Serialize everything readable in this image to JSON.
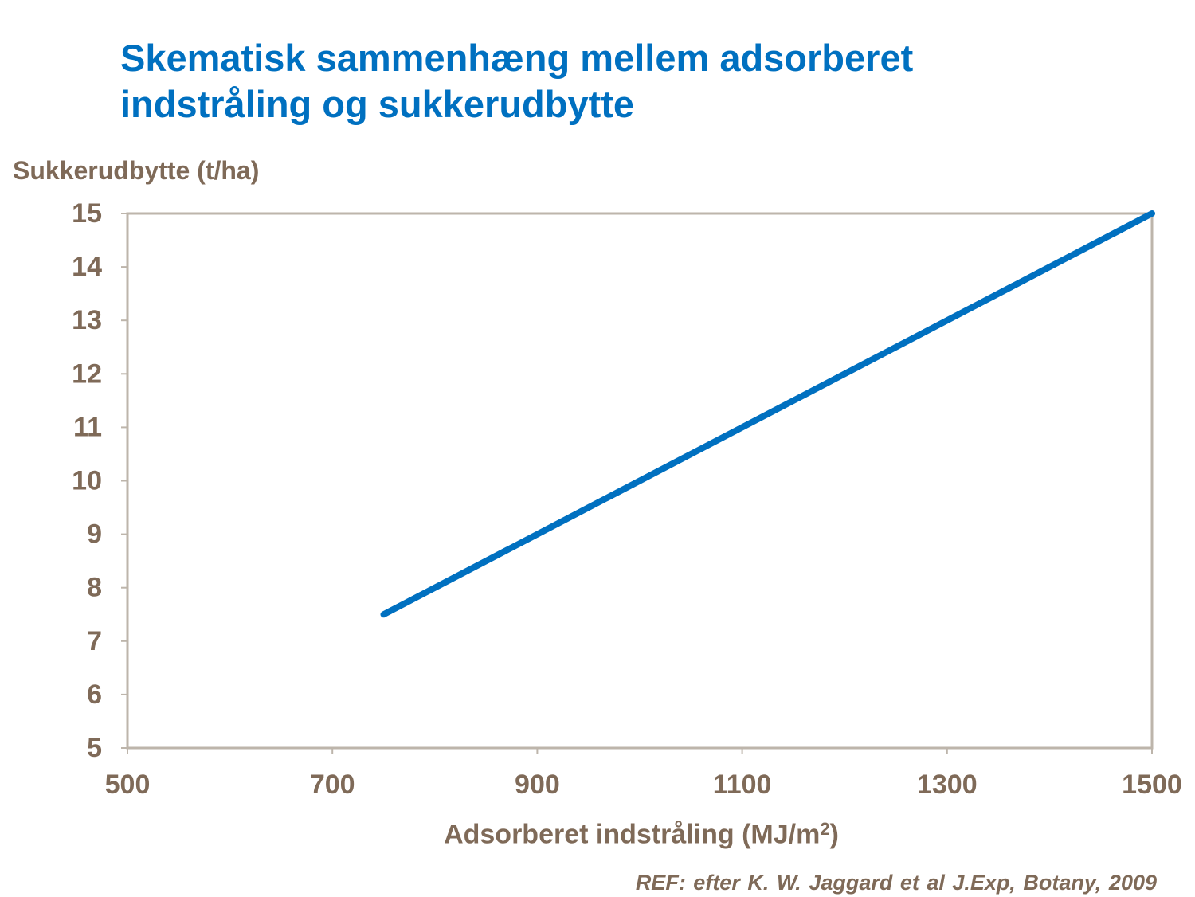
{
  "chart_data": {
    "type": "line",
    "title": "Skematisk sammenhæng mellem adsorberet indstråling og sukkerudbytte",
    "title_lines": [
      "Skematisk sammenhæng mellem adsorberet",
      "indstråling og sukkerudbytte"
    ],
    "ylabel": "Sukkerudbytte (t/ha)",
    "xlabel_main": "Adsorberet indstråling (MJ/m",
    "xlabel_sup": "2",
    "xlabel_end": ")",
    "xlim": [
      500,
      1500
    ],
    "ylim": [
      5,
      15
    ],
    "x_ticks": [
      500,
      700,
      900,
      1100,
      1300,
      1500
    ],
    "y_ticks": [
      5,
      6,
      7,
      8,
      9,
      10,
      11,
      12,
      13,
      14,
      15
    ],
    "grid": false,
    "legend": "none",
    "series": [
      {
        "x": [
          750,
          1500
        ],
        "y": [
          7.5,
          15
        ],
        "color": "#0070c0"
      }
    ],
    "reference": "REF: efter K. W. Jaggard et al J.Exp, Botany, 2009"
  },
  "colors": {
    "title": "#0070c0",
    "axis_text": "#7f6a58",
    "plot_border": "#bdb5ab",
    "line": "#0070c0"
  }
}
